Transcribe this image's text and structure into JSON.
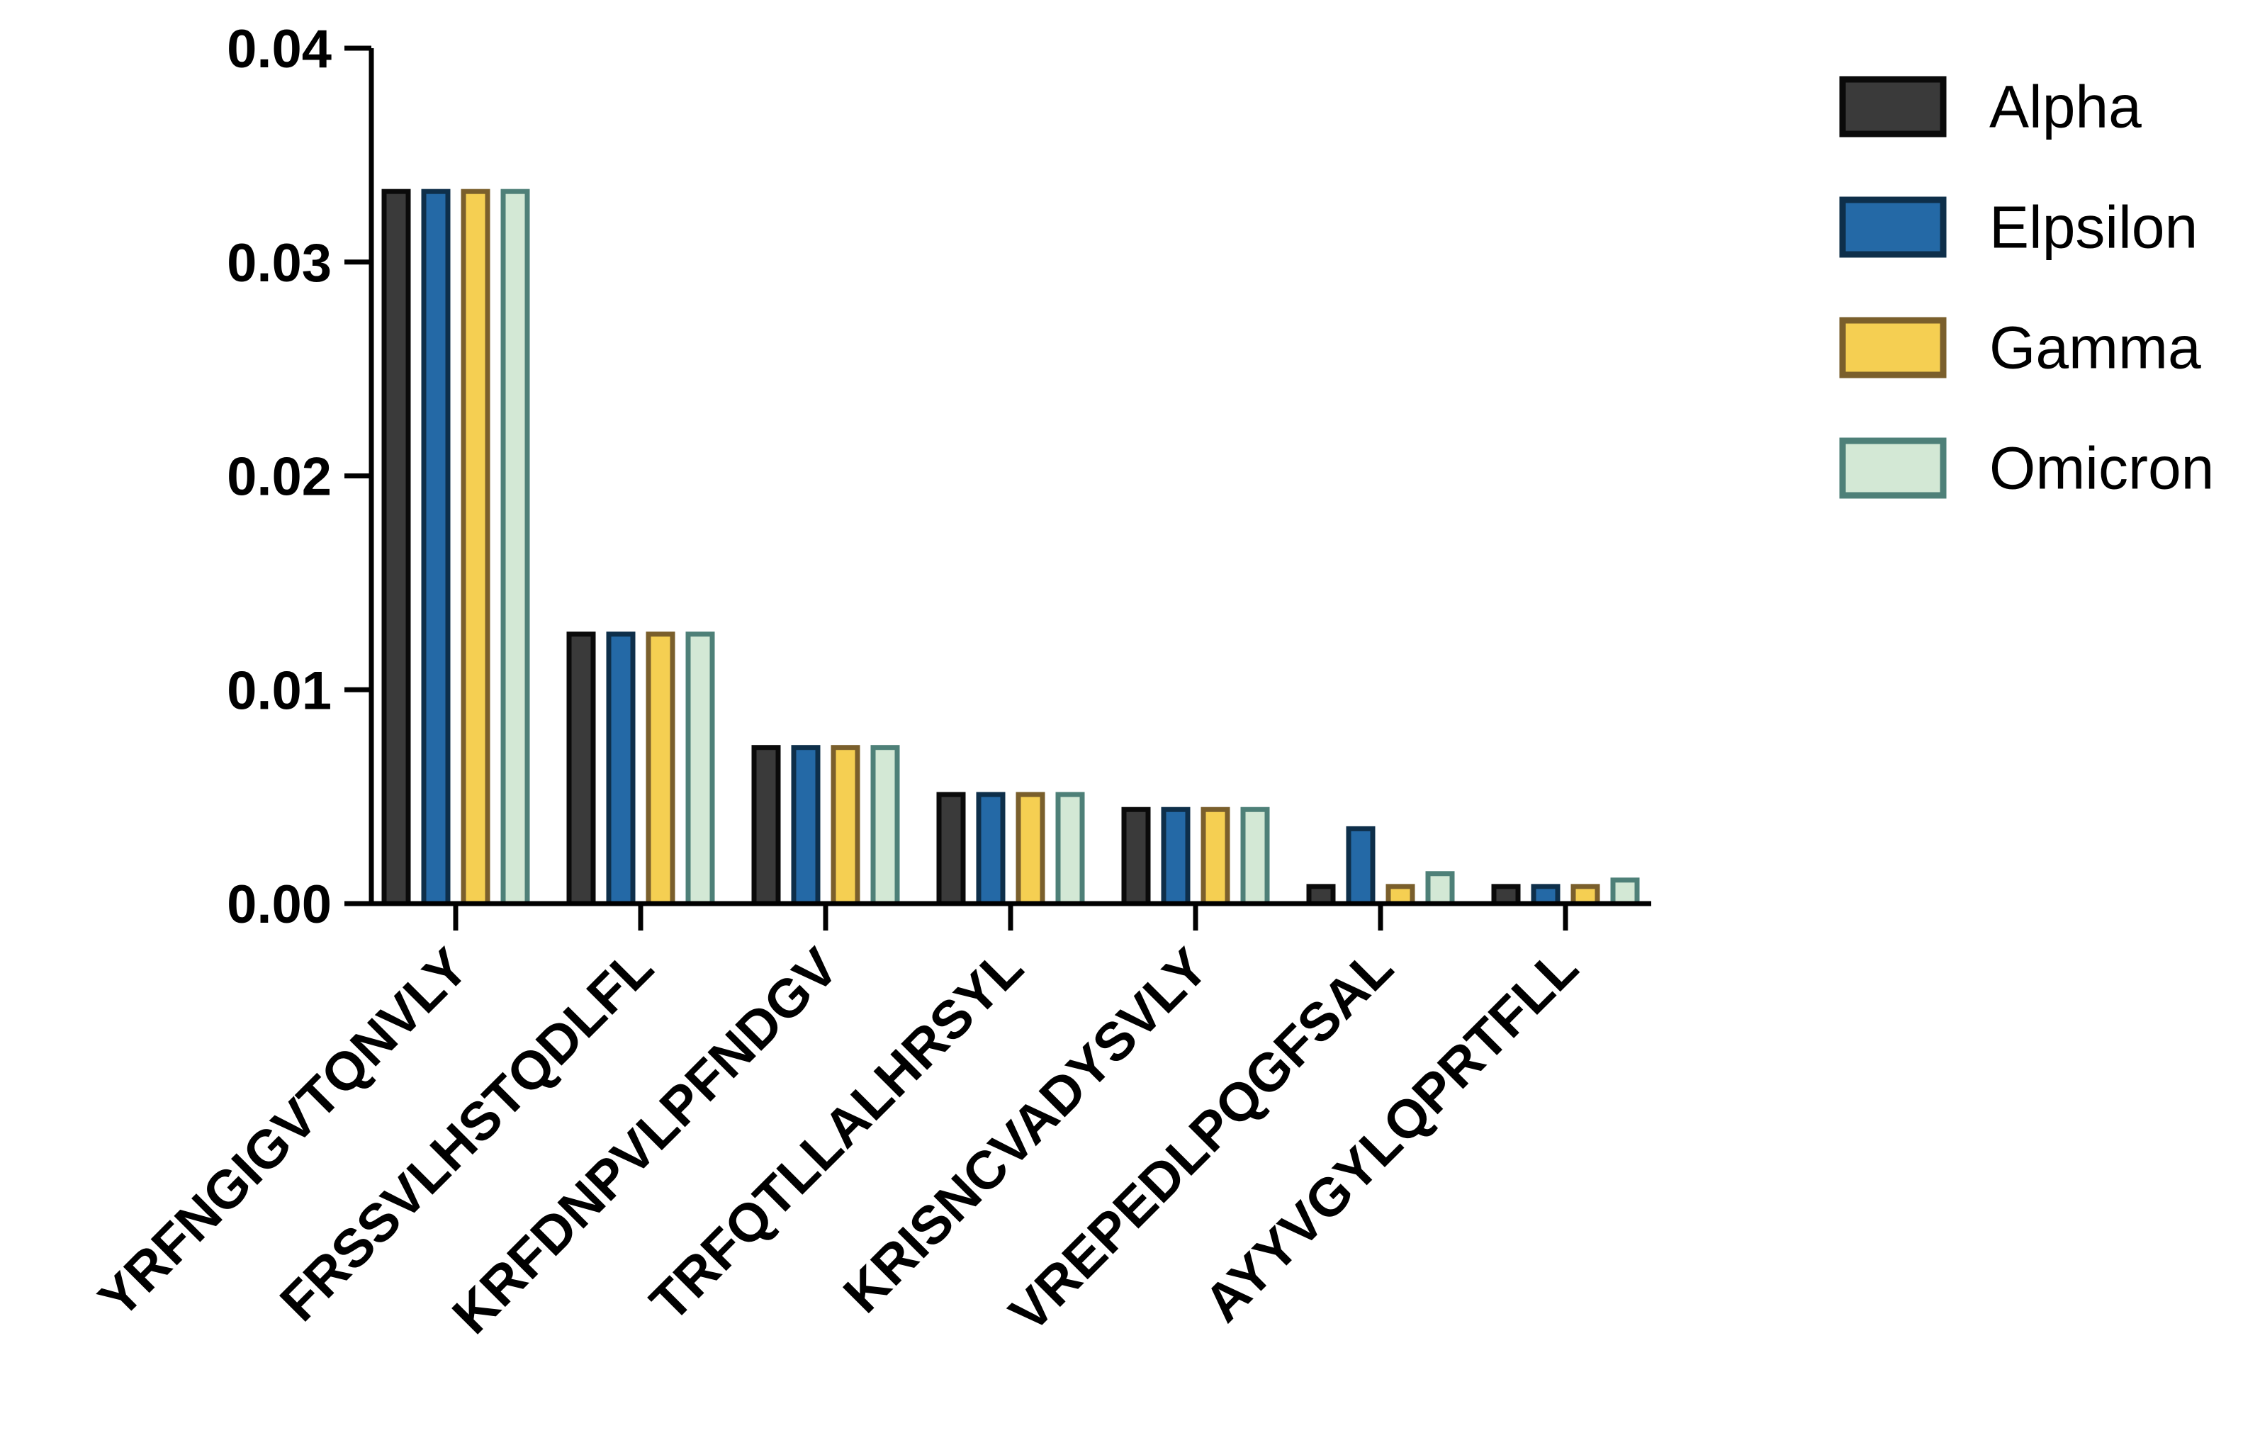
{
  "chart_data": {
    "type": "bar",
    "title": "",
    "xlabel": "",
    "ylabel": "",
    "ylim": [
      0,
      0.04
    ],
    "yticks": [
      "0.00",
      "0.01",
      "0.02",
      "0.03",
      "0.04"
    ],
    "grid": false,
    "legend_position": "top-right",
    "categories": [
      "YRFNGIGVTQNVLY",
      "FRSSVLHSTQDLFL",
      "KRFDNPVLPFNDGV",
      "TRFQTLLALHRSYL",
      "KRISNCVADYSVLY",
      "VREPEDLPQGFSAL",
      "AYYVGYLQPRTFLL"
    ],
    "series": [
      {
        "name": "Alpha",
        "fill": "#3a3a3a",
        "stroke": "#0a0a0a",
        "values": [
          0.0333,
          0.0126,
          0.0073,
          0.0051,
          0.0044,
          0.0008,
          0.0008
        ]
      },
      {
        "name": "Elpsilon",
        "fill": "#2469a6",
        "stroke": "#0e2f4a",
        "values": [
          0.0333,
          0.0126,
          0.0073,
          0.0051,
          0.0044,
          0.0035,
          0.0008
        ]
      },
      {
        "name": "Gamma",
        "fill": "#f5cf52",
        "stroke": "#7a5f2c",
        "values": [
          0.0333,
          0.0126,
          0.0073,
          0.0051,
          0.0044,
          0.0008,
          0.0008
        ]
      },
      {
        "name": "Omicron",
        "fill": "#d3e8d5",
        "stroke": "#4e8078",
        "values": [
          0.0333,
          0.0126,
          0.0073,
          0.0051,
          0.0044,
          0.0014,
          0.0011
        ]
      }
    ]
  }
}
